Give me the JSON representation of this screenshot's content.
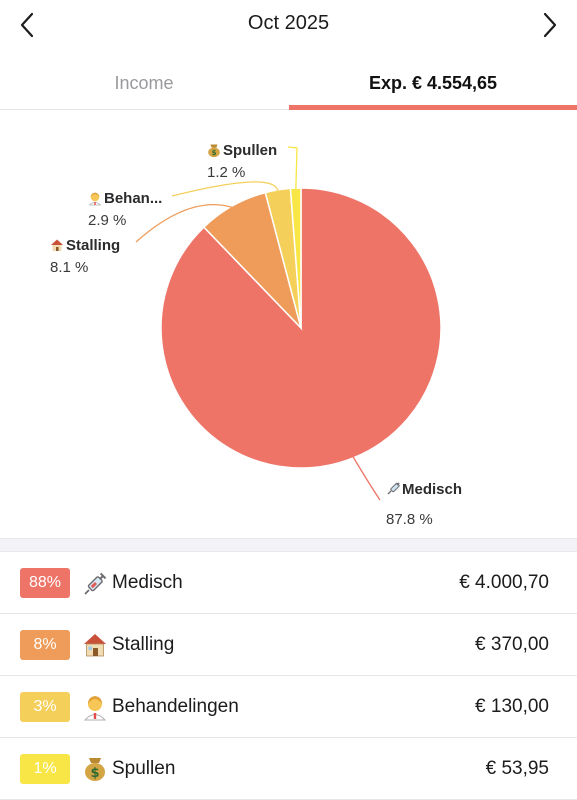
{
  "header": {
    "title": "Oct 2025",
    "prev_icon": "chevron-left-icon",
    "next_icon": "chevron-right-icon"
  },
  "tabs": {
    "income_label": "Income",
    "expense_label": "Exp. € 4.554,65",
    "active": "expense"
  },
  "colors": {
    "accent": "#ed7467",
    "medisch": "#ed7467",
    "stalling": "#ef9c5a",
    "behandelingen": "#f4cf5a",
    "spullen": "#f8e646"
  },
  "chart_data": {
    "type": "pie",
    "slices": [
      {
        "icon": "syringe-icon",
        "label": "Medisch",
        "percent_label": "87.8 %",
        "value": 87.8
      },
      {
        "icon": "house-icon",
        "label": "Stalling",
        "percent_label": "8.1 %",
        "value": 8.1
      },
      {
        "icon": "health-worker-icon",
        "label": "Behan...",
        "percent_label": "2.9 %",
        "value": 2.9
      },
      {
        "icon": "money-bag-icon",
        "label": "Spullen",
        "percent_label": "1.2 %",
        "value": 1.2
      }
    ]
  },
  "categories": [
    {
      "badge": "88%",
      "icon": "syringe-icon",
      "label": "Medisch",
      "amount": "€ 4.000,70"
    },
    {
      "badge": "8%",
      "icon": "house-icon",
      "label": "Stalling",
      "amount": "€ 370,00"
    },
    {
      "badge": "3%",
      "icon": "health-worker-icon",
      "label": "Behandelingen",
      "amount": "€ 130,00"
    },
    {
      "badge": "1%",
      "icon": "money-bag-icon",
      "label": "Spullen",
      "amount": "€ 53,95"
    }
  ]
}
